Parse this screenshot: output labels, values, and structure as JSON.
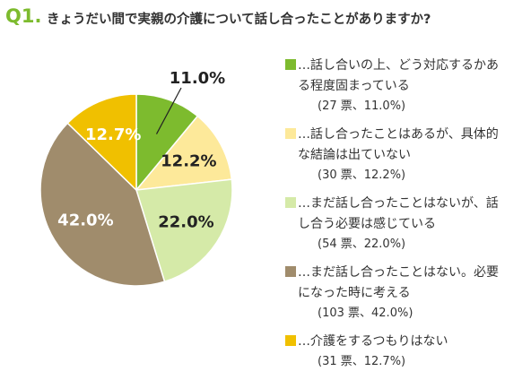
{
  "chart_data": {
    "type": "pie",
    "question_number": "Q1.",
    "title": "きょうだい間で実親の介護について話し合ったことがありますか?",
    "categories": [
      "…話し合いの上、どう対応するかある程度固まっている",
      "…話し合ったことはあるが、具体的な結論は出ていない",
      "…まだ話し合ったことはないが、話し合う必要は感じている",
      "…まだ話し合ったことはない。必要になった時に考える",
      "…介護をするつもりはない"
    ],
    "values": [
      11.0,
      12.2,
      22.0,
      42.0,
      12.7
    ],
    "value_labels": [
      "11.0%",
      "12.2%",
      "22.0%",
      "42.0%",
      "12.7%"
    ],
    "counts": [
      27,
      30,
      54,
      103,
      31
    ],
    "count_labels": [
      "(27 票、11.0%)",
      "(30 票、12.2%)",
      "(54 票、22.0%)",
      "(103 票、42.0%)",
      "(31 票、12.7%)"
    ],
    "colors": [
      "#7dbb2e",
      "#fde99a",
      "#d5eaa8",
      "#a08c6c",
      "#f0c000"
    ],
    "label_colors": [
      "#222222",
      "#222222",
      "#222222",
      "#ffffff",
      "#ffffff"
    ]
  }
}
